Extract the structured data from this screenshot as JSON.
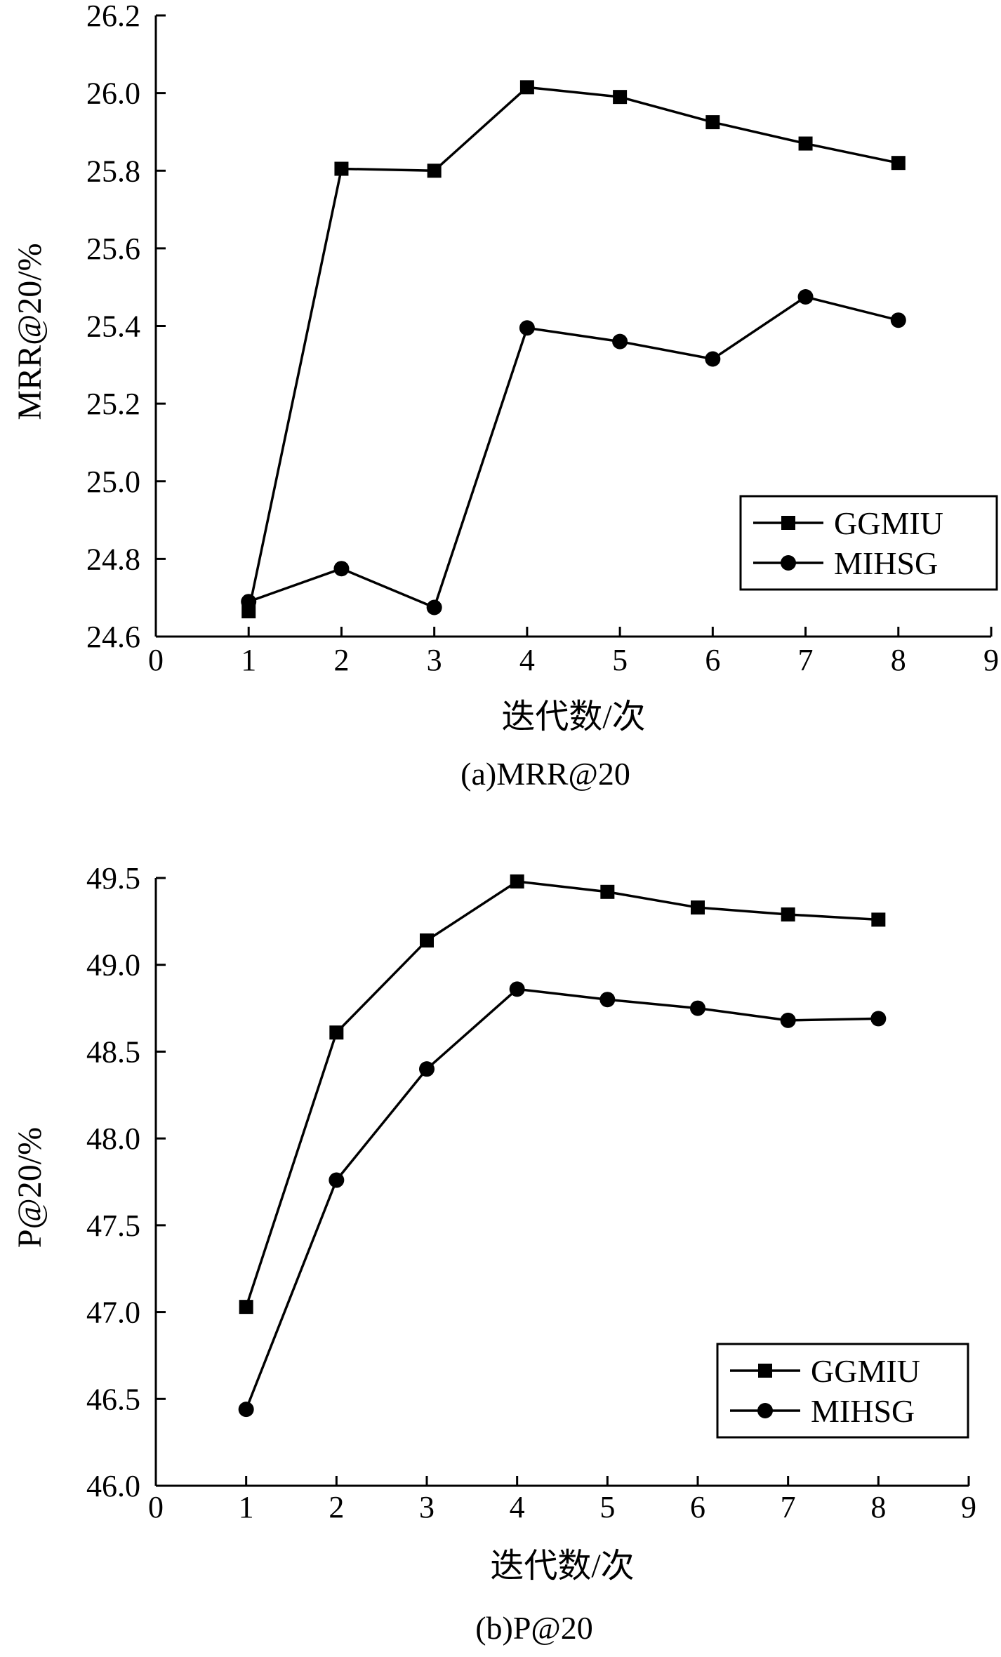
{
  "chart_data": [
    {
      "type": "line",
      "caption": "(a)MRR@20",
      "xlabel": "迭代数/次",
      "ylabel": "MRR@20/%",
      "xlim": [
        0,
        9
      ],
      "ylim": [
        24.6,
        26.2
      ],
      "xticks": [
        "0",
        "1",
        "2",
        "3",
        "4",
        "5",
        "6",
        "7",
        "8",
        "9"
      ],
      "yticks": [
        "24.6",
        "24.8",
        "25.0",
        "25.2",
        "25.4",
        "25.6",
        "25.8",
        "26.0",
        "26.2"
      ],
      "legend_position": "lower-right",
      "grid": false,
      "x": [
        1,
        2,
        3,
        4,
        5,
        6,
        7,
        8
      ],
      "series": [
        {
          "name": "GGMIU",
          "marker": "square",
          "values": [
            24.665,
            25.805,
            25.8,
            26.015,
            25.99,
            25.925,
            25.87,
            25.82
          ]
        },
        {
          "name": "MIHSG",
          "marker": "circle",
          "values": [
            24.69,
            24.775,
            24.675,
            25.395,
            25.36,
            25.315,
            25.475,
            25.415
          ]
        }
      ]
    },
    {
      "type": "line",
      "caption": "(b)P@20",
      "xlabel": "迭代数/次",
      "ylabel": "P@20/%",
      "xlim": [
        0,
        9
      ],
      "ylim": [
        46.0,
        49.5
      ],
      "xticks": [
        "0",
        "1",
        "2",
        "3",
        "4",
        "5",
        "6",
        "7",
        "8",
        "9"
      ],
      "yticks": [
        "46.0",
        "46.5",
        "47.0",
        "47.5",
        "48.0",
        "48.5",
        "49.0",
        "49.5"
      ],
      "legend_position": "lower-right",
      "grid": false,
      "x": [
        1,
        2,
        3,
        4,
        5,
        6,
        7,
        8
      ],
      "series": [
        {
          "name": "GGMIU",
          "marker": "square",
          "values": [
            47.03,
            48.61,
            49.14,
            49.48,
            49.42,
            49.33,
            49.29,
            49.26
          ]
        },
        {
          "name": "MIHSG",
          "marker": "circle",
          "values": [
            46.44,
            47.76,
            48.4,
            48.86,
            48.8,
            48.75,
            48.68,
            48.69
          ]
        }
      ]
    }
  ]
}
